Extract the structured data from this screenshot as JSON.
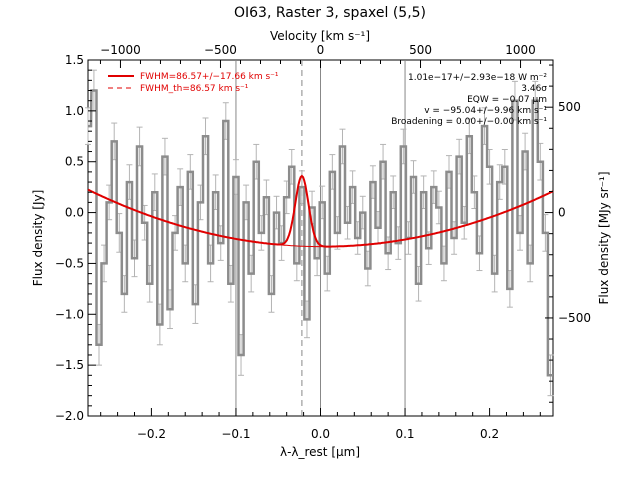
{
  "chart_data": {
    "type": "line",
    "title": "OI63, Raster 3, spaxel (5,5)",
    "xlabel": "λ-λ_rest [μm]",
    "ylabel": "Flux density [Jy]",
    "top_xlabel": "Velocity [km s⁻¹]",
    "right_ylabel": "Flux density [MJy sr⁻¹]",
    "xlim": [
      -0.275,
      0.275
    ],
    "ylim": [
      -2.0,
      1.5
    ],
    "x_ticks": [
      -0.2,
      -0.1,
      0.0,
      0.1,
      0.2
    ],
    "x_tick_labels": [
      "−0.2",
      "−0.1",
      "0.0",
      "0.1",
      "0.2"
    ],
    "y_ticks": [
      -2.0,
      -1.5,
      -1.0,
      -0.5,
      0.0,
      0.5,
      1.0,
      1.5
    ],
    "y_tick_labels": [
      "−2.0",
      "−1.5",
      "−1.0",
      "−0.5",
      "0.0",
      "0.5",
      "1.0",
      "1.5"
    ],
    "top_ticks": [
      -1000,
      -500,
      0,
      500,
      1000
    ],
    "top_tick_labels": [
      "−1000",
      "−500",
      "0",
      "500",
      "1000"
    ],
    "right_ticks": [
      -500,
      0,
      500
    ],
    "right_tick_labels": [
      "−500",
      "0",
      "500"
    ],
    "vertical_lines_x": [
      -0.1,
      0.0,
      0.1
    ],
    "dashed_line_x": -0.022,
    "legend": {
      "placement": "top-left",
      "entries": [
        "FWHM=86.57+/−17.66 km s⁻¹",
        "FWHM_th=86.57 km s⁻¹"
      ]
    },
    "annotations": [
      "1.01e−17+/−2.93e−18 W m⁻²",
      "3.46σ",
      "EQW = −0.07 μm",
      "v = −95.04+/−9.96 km s⁻¹",
      "Broadening = 0.00+/−0.00 km s⁻¹"
    ],
    "colors": {
      "data": "#8c8c8c",
      "errorbar": "#b4b4b4",
      "fit": "#e00000",
      "guide": "#888888"
    },
    "series": [
      {
        "name": "spectrum",
        "x": [
          -0.275,
          -0.268,
          -0.262,
          -0.256,
          -0.25,
          -0.244,
          -0.238,
          -0.232,
          -0.226,
          -0.22,
          -0.214,
          -0.208,
          -0.202,
          -0.196,
          -0.19,
          -0.184,
          -0.178,
          -0.172,
          -0.166,
          -0.16,
          -0.154,
          -0.148,
          -0.142,
          -0.136,
          -0.13,
          -0.124,
          -0.118,
          -0.112,
          -0.106,
          -0.1,
          -0.094,
          -0.088,
          -0.082,
          -0.076,
          -0.07,
          -0.064,
          -0.058,
          -0.052,
          -0.046,
          -0.04,
          -0.034,
          -0.028,
          -0.022,
          -0.016,
          -0.01,
          -0.004,
          0.002,
          0.008,
          0.014,
          0.02,
          0.026,
          0.032,
          0.038,
          0.044,
          0.05,
          0.056,
          0.062,
          0.068,
          0.074,
          0.08,
          0.086,
          0.092,
          0.098,
          0.104,
          0.11,
          0.116,
          0.122,
          0.128,
          0.134,
          0.14,
          0.146,
          0.152,
          0.158,
          0.164,
          0.17,
          0.176,
          0.182,
          0.188,
          0.194,
          0.2,
          0.206,
          0.212,
          0.218,
          0.224,
          0.23,
          0.236,
          0.242,
          0.248,
          0.254,
          0.26,
          0.266,
          0.272
        ],
        "y": [
          0.85,
          1.2,
          -1.3,
          -0.5,
          0.1,
          0.7,
          -0.2,
          -0.8,
          0.3,
          -0.45,
          0.65,
          -0.1,
          -0.7,
          0.2,
          -1.1,
          0.55,
          -0.95,
          -0.2,
          0.25,
          -0.5,
          0.4,
          -0.9,
          0.1,
          0.75,
          -0.5,
          0.2,
          -0.3,
          0.9,
          -0.7,
          0.35,
          -1.4,
          0.1,
          -0.6,
          0.5,
          -0.2,
          0.15,
          -0.8,
          0.0,
          -0.3,
          0.15,
          0.45,
          -0.5,
          0.25,
          -1.05,
          0.05,
          -0.45,
          0.1,
          -0.6,
          0.4,
          -0.2,
          0.65,
          -0.1,
          0.25,
          -0.25,
          0.0,
          -0.55,
          0.3,
          -0.15,
          0.5,
          -0.4,
          0.2,
          -0.3,
          0.65,
          -0.25,
          0.35,
          -0.7,
          0.2,
          -0.35,
          0.25,
          0.05,
          -0.5,
          0.4,
          -0.25,
          0.55,
          -0.1,
          0.75,
          0.2,
          -0.4,
          0.85,
          0.45,
          -0.6,
          0.3,
          0.45,
          -0.75,
          1.1,
          -0.2,
          0.6,
          -0.5,
          1.1,
          0.5,
          -0.2,
          -1.6
        ],
        "err": [
          0.18,
          0.2,
          0.2,
          0.18,
          0.17,
          0.18,
          0.19,
          0.18,
          0.17,
          0.18,
          0.19,
          0.17,
          0.18,
          0.18,
          0.2,
          0.18,
          0.19,
          0.17,
          0.18,
          0.18,
          0.17,
          0.19,
          0.17,
          0.18,
          0.18,
          0.17,
          0.17,
          0.18,
          0.18,
          0.17,
          0.2,
          0.17,
          0.18,
          0.17,
          0.17,
          0.17,
          0.18,
          0.16,
          0.17,
          0.16,
          0.17,
          0.17,
          0.16,
          0.18,
          0.16,
          0.17,
          0.16,
          0.17,
          0.17,
          0.16,
          0.17,
          0.16,
          0.16,
          0.16,
          0.16,
          0.17,
          0.16,
          0.16,
          0.17,
          0.16,
          0.16,
          0.16,
          0.17,
          0.16,
          0.16,
          0.17,
          0.16,
          0.16,
          0.16,
          0.16,
          0.17,
          0.16,
          0.16,
          0.17,
          0.16,
          0.17,
          0.16,
          0.17,
          0.18,
          0.17,
          0.18,
          0.17,
          0.17,
          0.18,
          0.19,
          0.17,
          0.18,
          0.18,
          0.19,
          0.18,
          0.18,
          0.2
        ]
      },
      {
        "name": "fit",
        "baseline": {
          "a": -0.335,
          "b": 0.0,
          "c": 7.3,
          "x0": 0.002
        },
        "gaussian": {
          "amplitude": 0.69,
          "center": -0.022,
          "sigma": 0.0078
        }
      }
    ]
  }
}
